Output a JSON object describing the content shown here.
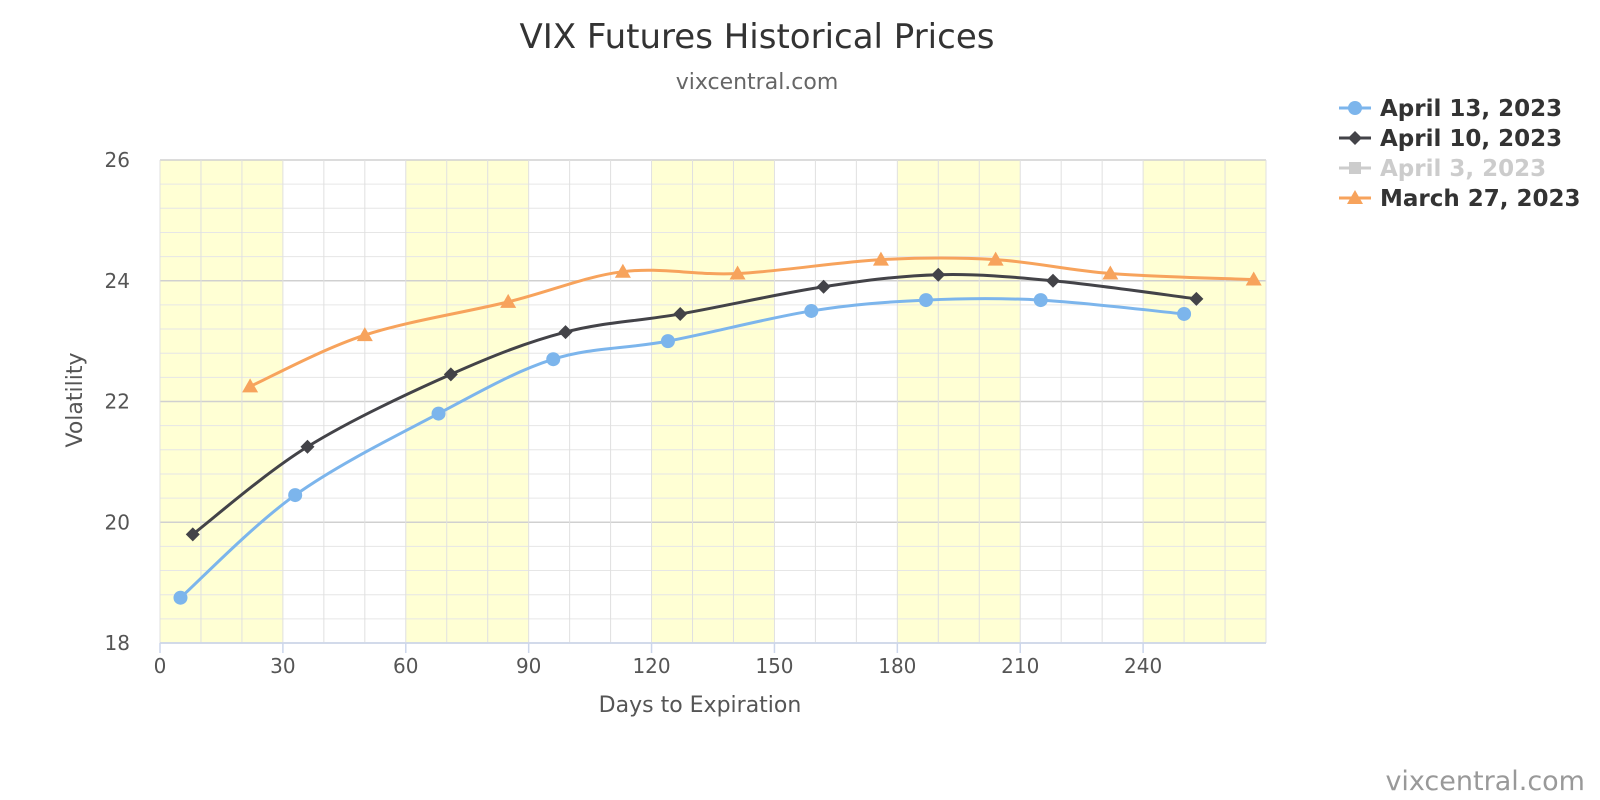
{
  "chart_data": {
    "type": "line",
    "title": "VIX Futures Historical Prices",
    "subtitle": "vixcentral.com",
    "xlabel": "Days to Expiration",
    "ylabel": "Volatility",
    "xlim": [
      0,
      270
    ],
    "ylim": [
      18,
      26
    ],
    "xticks": [
      0,
      30,
      60,
      90,
      120,
      150,
      180,
      210,
      240
    ],
    "yticks": [
      18,
      20,
      22,
      24,
      26
    ],
    "grid": true,
    "legend_position": "top-right",
    "highlight_bands": [
      [
        0,
        30
      ],
      [
        60,
        90
      ],
      [
        120,
        150
      ],
      [
        180,
        210
      ],
      [
        240,
        270
      ]
    ],
    "series": [
      {
        "name": "April 13, 2023",
        "color": "#7cb5ec",
        "marker": "circle",
        "visible": true,
        "x": [
          5,
          33,
          68,
          96,
          124,
          159,
          187,
          215,
          250
        ],
        "y": [
          18.75,
          20.45,
          21.8,
          22.7,
          23.0,
          23.5,
          23.68,
          23.68,
          23.45
        ]
      },
      {
        "name": "April 10, 2023",
        "color": "#434348",
        "marker": "diamond",
        "visible": true,
        "x": [
          8,
          36,
          71,
          99,
          127,
          162,
          190,
          218,
          253
        ],
        "y": [
          19.8,
          21.25,
          22.45,
          23.15,
          23.45,
          23.9,
          24.1,
          24.0,
          23.7
        ]
      },
      {
        "name": "April 3, 2023",
        "color": "#cccccc",
        "marker": "square",
        "visible": false,
        "x": [],
        "y": []
      },
      {
        "name": "March 27, 2023",
        "color": "#f7a35c",
        "marker": "triangle",
        "visible": true,
        "x": [
          22,
          50,
          85,
          113,
          141,
          176,
          204,
          232,
          267
        ],
        "y": [
          22.25,
          23.1,
          23.65,
          24.15,
          24.12,
          24.35,
          24.35,
          24.12,
          24.02
        ]
      }
    ]
  },
  "credit": "vixcentral.com"
}
